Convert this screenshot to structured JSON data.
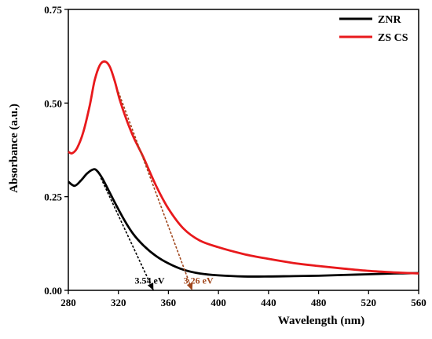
{
  "chart_data": {
    "type": "line",
    "xlabel": "Wavelength (nm)",
    "ylabel": "Absorbance (a.u.)",
    "xlim": [
      280,
      560
    ],
    "ylim": [
      0,
      0.75
    ],
    "xticks": [
      280,
      320,
      360,
      400,
      440,
      480,
      520,
      560
    ],
    "yticks": [
      0.0,
      0.25,
      0.5,
      0.75
    ],
    "ytick_labels": [
      "0.00",
      "0.25",
      "0.50",
      "0.75"
    ],
    "grid": false,
    "legend_position": "top-right",
    "series": [
      {
        "name": "ZNR",
        "color": "#000000",
        "x": [
          280,
          285,
          290,
          295,
          300,
          303,
          307,
          312,
          318,
          325,
          332,
          340,
          350,
          360,
          372,
          385,
          400,
          420,
          440,
          460,
          480,
          500,
          520,
          540,
          560
        ],
        "y": [
          0.29,
          0.279,
          0.293,
          0.312,
          0.323,
          0.319,
          0.3,
          0.268,
          0.229,
          0.186,
          0.15,
          0.12,
          0.092,
          0.072,
          0.055,
          0.045,
          0.04,
          0.037,
          0.037,
          0.038,
          0.039,
          0.041,
          0.043,
          0.045,
          0.046
        ]
      },
      {
        "name": "ZS CS",
        "color": "#e8191c",
        "x": [
          280,
          283,
          287,
          292,
          297,
          301,
          305,
          309,
          313,
          317,
          321,
          326,
          332,
          340,
          350,
          360,
          372,
          385,
          400,
          420,
          440,
          460,
          480,
          500,
          520,
          540,
          560
        ],
        "y": [
          0.37,
          0.366,
          0.38,
          0.423,
          0.492,
          0.56,
          0.6,
          0.611,
          0.598,
          0.56,
          0.51,
          0.46,
          0.41,
          0.355,
          0.28,
          0.218,
          0.165,
          0.133,
          0.115,
          0.097,
          0.084,
          0.073,
          0.065,
          0.058,
          0.052,
          0.048,
          0.045
        ]
      }
    ],
    "tangents": [
      {
        "x1": 306,
        "y1": 0.3,
        "x2": 348,
        "y2": 0.0,
        "color": "#000000"
      },
      {
        "x1": 320,
        "y1": 0.53,
        "x2": 379,
        "y2": 0.0,
        "color": "#a0461c"
      }
    ],
    "annotations": [
      {
        "text": "3.54 eV",
        "x": 345,
        "y": 0.018,
        "color": "#000000"
      },
      {
        "text": "3.26 eV",
        "x": 384,
        "y": 0.018,
        "color": "#a0461c"
      }
    ]
  }
}
